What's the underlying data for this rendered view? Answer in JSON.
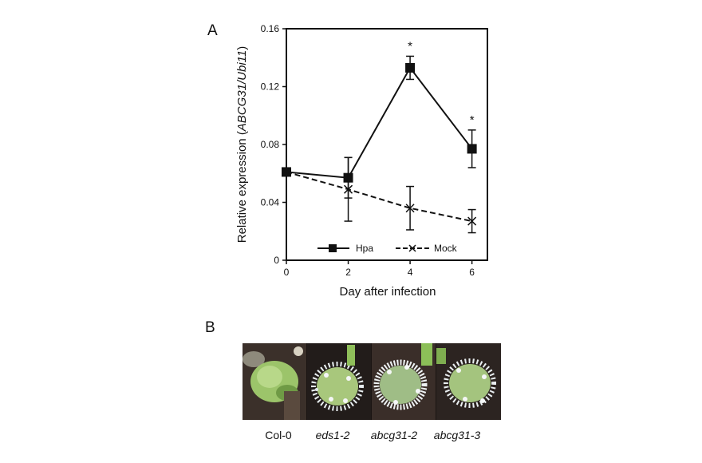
{
  "panels": {
    "a_letter": "A",
    "b_letter": "B"
  },
  "chart_data": {
    "type": "line",
    "title": "",
    "xlabel": "Day after infection",
    "ylabel_prefix": "Relative expression (",
    "ylabel_italic": "ABCG31/Ubi11",
    "ylabel_suffix": ")",
    "x": [
      0,
      2,
      4,
      6
    ],
    "xlim": [
      0,
      6.5
    ],
    "ylim": [
      0,
      0.16
    ],
    "x_ticks": [
      "0",
      "2",
      "4",
      "6"
    ],
    "y_ticks": [
      "0",
      "0.04",
      "0.08",
      "0.12",
      "0.16"
    ],
    "y_tick_values": [
      0,
      0.04,
      0.08,
      0.12,
      0.16
    ],
    "grid": false,
    "legend_position": "bottom-center",
    "series": [
      {
        "name": "Hpa",
        "marker": "square",
        "line_style": "solid",
        "values": [
          0.061,
          0.057,
          0.133,
          0.077
        ],
        "errors": [
          0.0,
          0.014,
          0.008,
          0.013
        ],
        "significance": [
          "",
          "",
          "*",
          "*"
        ]
      },
      {
        "name": "Mock",
        "marker": "x",
        "line_style": "dashed",
        "values": [
          0.061,
          0.049,
          0.036,
          0.027
        ],
        "errors": [
          0.0,
          0.022,
          0.015,
          0.008
        ],
        "significance": [
          "",
          "",
          "",
          ""
        ]
      }
    ]
  },
  "photos": [
    {
      "label": "Col-0",
      "italic": false
    },
    {
      "label": "eds1-2",
      "italic": true
    },
    {
      "label": "abcg31-2",
      "italic": true
    },
    {
      "label": "abcg31-3",
      "italic": true
    }
  ]
}
